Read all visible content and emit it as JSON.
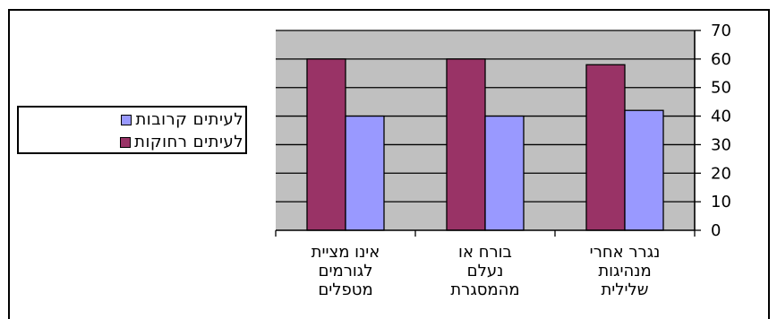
{
  "chart_data": {
    "type": "bar",
    "categories": [
      [
        "אינו מציית",
        "לגורמים",
        "מטפלים"
      ],
      [
        "בורח או",
        "נעלם",
        "מהמסגרת"
      ],
      [
        "נגרר אחרי",
        "מנהיגות",
        "שלילית"
      ]
    ],
    "series": [
      {
        "name": "לעיתים רחוקות",
        "color": "#993366",
        "values": [
          60,
          60,
          58
        ]
      },
      {
        "name": "לעיתים קרובות",
        "color": "#9999ff",
        "values": [
          40,
          40,
          42
        ]
      }
    ],
    "ylim": [
      0,
      70
    ],
    "yticks": [
      0,
      10,
      20,
      30,
      40,
      50,
      60,
      70
    ],
    "y_axis_side": "right",
    "grid": true,
    "plot_background": "#c0c0c0",
    "legend_placement": "left"
  },
  "legend": [
    {
      "label": "לעיתים קרובות",
      "color": "#9999ff"
    },
    {
      "label": "לעיתים רחוקות",
      "color": "#993366"
    }
  ]
}
